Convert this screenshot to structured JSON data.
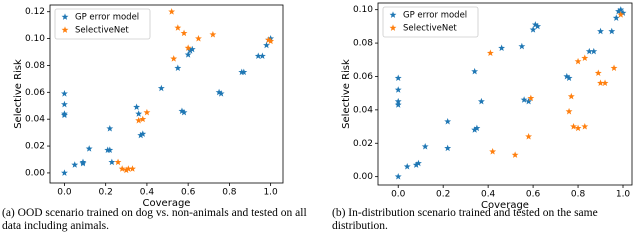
{
  "chart_data": [
    {
      "type": "scatter",
      "xlabel": "Coverage",
      "ylabel": "Selective Risk",
      "xlim": [
        -0.07,
        1.06
      ],
      "ylim": [
        -0.0075,
        0.125
      ],
      "xticks": [
        {
          "value": 0,
          "label": "0.0"
        },
        0.2,
        0.4,
        0.6,
        0.8,
        {
          "value": 1,
          "label": "1.0"
        }
      ],
      "yticks": [
        {
          "value": 0,
          "label": "0.00"
        },
        {
          "value": 0.02,
          "label": "0.02"
        },
        {
          "value": 0.04,
          "label": "0.04"
        },
        {
          "value": 0.06,
          "label": "0.06"
        },
        {
          "value": 0.08,
          "label": "0.08"
        },
        {
          "value": 0.1,
          "label": "0.10"
        },
        {
          "value": 0.12,
          "label": "0.12"
        }
      ],
      "legend": "upper left",
      "caption": "(a) OOD scenario trained on dog vs. non-animals and tested on all data including animals.",
      "series": [
        {
          "name": "GP error model",
          "color": "#1f77b4",
          "x": [
            0,
            0,
            0,
            0,
            0,
            0.05,
            0.09,
            0.09,
            0.12,
            0.22,
            0.22,
            0.21,
            0.23,
            0.35,
            0.37,
            0.38,
            0.36,
            0.47,
            0.55,
            0.57,
            0.58,
            0.6,
            0.61,
            0.62,
            0.75,
            0.76,
            0.86,
            0.87,
            0.94,
            0.96,
            0.98,
            0.99,
            1.0
          ],
          "values": [
            0.059,
            0.051,
            0.044,
            0.043,
            0.0,
            0.006,
            0.007,
            0.008,
            0.018,
            0.033,
            0.017,
            0.017,
            0.008,
            0.049,
            0.028,
            0.029,
            0.044,
            0.063,
            0.078,
            0.046,
            0.045,
            0.088,
            0.091,
            0.092,
            0.06,
            0.059,
            0.075,
            0.075,
            0.087,
            0.087,
            0.095,
            0.099,
            0.1
          ]
        },
        {
          "name": "SelectiveNet",
          "color": "#ff7f0e",
          "x": [
            0.26,
            0.28,
            0.3,
            0.31,
            0.33,
            0.36,
            0.38,
            0.4,
            0.52,
            0.53,
            0.55,
            0.58,
            0.6,
            0.65,
            0.72,
            0.99,
            1.0
          ],
          "values": [
            0.008,
            0.003,
            0.002,
            0.003,
            0.003,
            0.039,
            0.04,
            0.045,
            0.12,
            0.085,
            0.108,
            0.104,
            0.093,
            0.1,
            0.103,
            0.099,
            0.098
          ]
        }
      ]
    },
    {
      "type": "scatter",
      "xlabel": "Coverage",
      "ylabel": "Selective Risk",
      "xlim": [
        -0.09,
        1.04
      ],
      "ylim": [
        -0.005,
        0.104
      ],
      "xticks": [
        {
          "value": 0,
          "label": "0.0"
        },
        0.2,
        0.4,
        0.6,
        0.8,
        {
          "value": 1,
          "label": "1.0"
        }
      ],
      "yticks": [
        {
          "value": 0,
          "label": "0.00"
        },
        {
          "value": 0.02,
          "label": "0.02"
        },
        {
          "value": 0.04,
          "label": "0.04"
        },
        {
          "value": 0.06,
          "label": "0.06"
        },
        {
          "value": 0.08,
          "label": "0.08"
        },
        {
          "value": 0.1,
          "label": "0.10"
        }
      ],
      "legend": "upper left",
      "caption": "(b) In-distribution scenario trained and tested on the same distribution.",
      "series": [
        {
          "name": "GP error model",
          "color": "#1f77b4",
          "x": [
            0,
            0,
            0,
            0,
            0,
            0.04,
            0.08,
            0.09,
            0.12,
            0.22,
            0.22,
            0.34,
            0.35,
            0.37,
            0.34,
            0.46,
            0.55,
            0.56,
            0.58,
            0.6,
            0.61,
            0.62,
            0.75,
            0.76,
            0.85,
            0.87,
            0.9,
            0.95,
            0.97,
            0.98,
            0.99,
            1.0
          ],
          "values": [
            0.059,
            0.052,
            0.045,
            0.043,
            0.0,
            0.006,
            0.007,
            0.008,
            0.018,
            0.033,
            0.017,
            0.028,
            0.029,
            0.045,
            0.063,
            0.077,
            0.078,
            0.046,
            0.045,
            0.088,
            0.091,
            0.09,
            0.06,
            0.059,
            0.075,
            0.075,
            0.087,
            0.087,
            0.095,
            0.099,
            0.1,
            0.098
          ]
        },
        {
          "name": "SelectiveNet",
          "color": "#ff7f0e",
          "x": [
            0.41,
            0.42,
            0.52,
            0.58,
            0.59,
            0.76,
            0.77,
            0.78,
            0.8,
            0.83,
            0.8,
            0.83,
            0.89,
            0.9,
            0.92,
            0.96,
            0.99
          ],
          "values": [
            0.074,
            0.015,
            0.013,
            0.024,
            0.047,
            0.039,
            0.048,
            0.03,
            0.029,
            0.03,
            0.069,
            0.071,
            0.062,
            0.056,
            0.056,
            0.065,
            0.097
          ]
        }
      ]
    }
  ]
}
